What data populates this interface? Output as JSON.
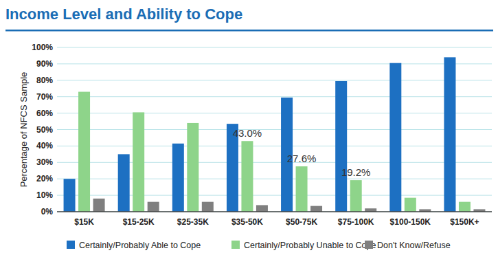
{
  "chart_data": {
    "type": "bar",
    "title": "Income Level and Ability to Cope",
    "y_label": "Percentage of NFCS Sample",
    "categories": [
      "$15K",
      "$15-25K",
      "$25-35K",
      "$35-50K",
      "$50-75K",
      "$75-100K",
      "$100-150K",
      "$150K+"
    ],
    "series": [
      {
        "name": "Certainly/Probably Able to Cope",
        "color": "#1d70c2",
        "values": [
          20,
          35,
          41.5,
          53.5,
          69.5,
          79.5,
          90.5,
          94
        ]
      },
      {
        "name": "Certainly/Probably Unable to Cope",
        "color": "#8ed48a",
        "values": [
          73,
          60.5,
          54,
          43,
          27.6,
          19.2,
          8.5,
          6
        ],
        "value_labels": [
          null,
          null,
          null,
          "43.0%",
          "27.6%",
          "19.2%",
          null,
          null
        ]
      },
      {
        "name": "Don't Know/Refuse",
        "color": "#7f7f7f",
        "values": [
          8,
          6,
          6,
          4,
          3.5,
          2,
          1.5,
          1.5
        ]
      }
    ],
    "ylim": [
      0,
      100
    ],
    "yticks": [
      {
        "value": 0,
        "label": "0%"
      },
      {
        "value": 10,
        "label": "10%"
      },
      {
        "value": 20,
        "label": "20%"
      },
      {
        "value": 30,
        "label": "30%"
      },
      {
        "value": 40,
        "label": "40%"
      },
      {
        "value": 50,
        "label": "50%"
      },
      {
        "value": 60,
        "label": "60%"
      },
      {
        "value": 70,
        "label": "70%"
      },
      {
        "value": 80,
        "label": "80%"
      },
      {
        "value": 90,
        "label": "90%"
      },
      {
        "value": 100,
        "label": "100%"
      }
    ],
    "grid": true,
    "legend": "bottom",
    "data_labels": true
  }
}
